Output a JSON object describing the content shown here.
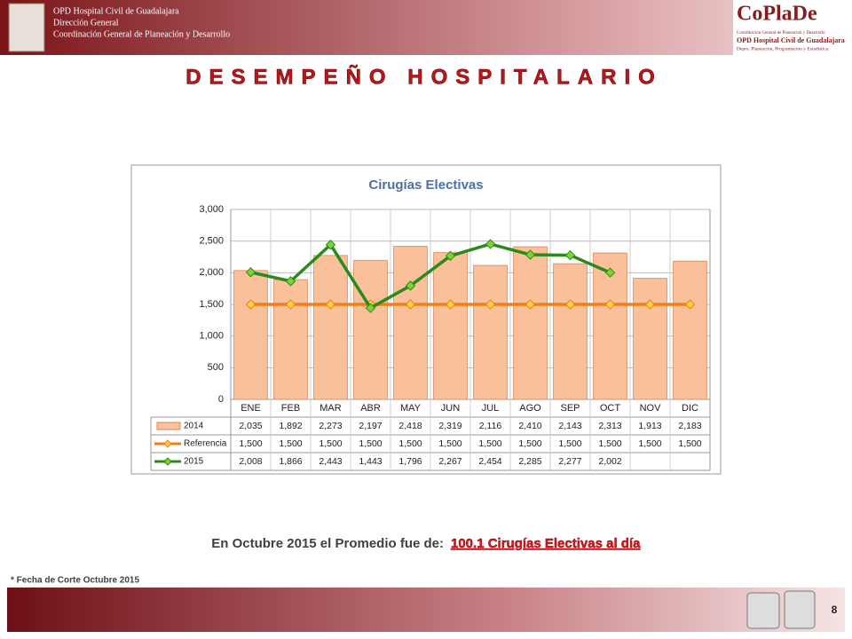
{
  "header": {
    "left_lines": [
      "OPD Hospital Civil de Guadalajara",
      "Dirección General",
      "Coordinación General de Planeación y Desarrollo"
    ],
    "logo": "CoPlaDe",
    "right_lines": [
      "Coordinación General de Planeación y Desarrollo",
      "OPD Hospital Civil de Guadalajara",
      "Depto. Planeación, Programación y Estadística"
    ]
  },
  "slide_title": "DESEMPEÑO HOSPITALARIO",
  "chart_data": {
    "type": "bar",
    "title": "Cirugías Electivas",
    "categories": [
      "ENE",
      "FEB",
      "MAR",
      "ABR",
      "MAY",
      "JUN",
      "JUL",
      "AGO",
      "SEP",
      "OCT",
      "NOV",
      "DIC"
    ],
    "series": [
      {
        "name": "2014",
        "type": "bar",
        "color": "#f9c09a",
        "values": [
          2035,
          1892,
          2273,
          2197,
          2418,
          2319,
          2116,
          2410,
          2143,
          2313,
          1913,
          2183
        ],
        "value_labels": [
          "2,035",
          "1,892",
          "2,273",
          "2,197",
          "2,418",
          "2,319",
          "2,116",
          "2,410",
          "2,143",
          "2,313",
          "1,913",
          "2,183"
        ]
      },
      {
        "name": "Referencia",
        "type": "line",
        "color": "#f07f18",
        "marker_color": "#ffd23f",
        "values": [
          1500,
          1500,
          1500,
          1500,
          1500,
          1500,
          1500,
          1500,
          1500,
          1500,
          1500,
          1500
        ],
        "value_labels": [
          "1,500",
          "1,500",
          "1,500",
          "1,500",
          "1,500",
          "1,500",
          "1,500",
          "1,500",
          "1,500",
          "1,500",
          "1,500",
          "1,500"
        ]
      },
      {
        "name": "2015",
        "type": "line",
        "color": "#2a8a1c",
        "marker_color": "#7fd32f",
        "values": [
          2008,
          1866,
          2443,
          1443,
          1796,
          2267,
          2454,
          2285,
          2277,
          2002,
          null,
          null
        ],
        "value_labels": [
          "2,008",
          "1,866",
          "2,443",
          "1,443",
          "1,796",
          "2,267",
          "2,454",
          "2,285",
          "2,277",
          "2,002",
          null,
          null
        ]
      }
    ],
    "ylim": [
      0,
      3000
    ],
    "yticks": [
      0,
      500,
      {
        "value": 1000,
        "label": "1,000"
      },
      {
        "value": 1500,
        "label": "1,500"
      },
      {
        "value": 2000,
        "label": "2,000"
      },
      {
        "value": 2500,
        "label": "2,500"
      },
      {
        "value": 3000,
        "label": "3,000"
      }
    ],
    "grid": true
  },
  "summary": {
    "prefix": "En Octubre 2015 el Promedio fue de:",
    "highlight": "100.1 Cirugías Electivas al día"
  },
  "note": "* Fecha de Corte Octubre 2015",
  "page_number": "8"
}
